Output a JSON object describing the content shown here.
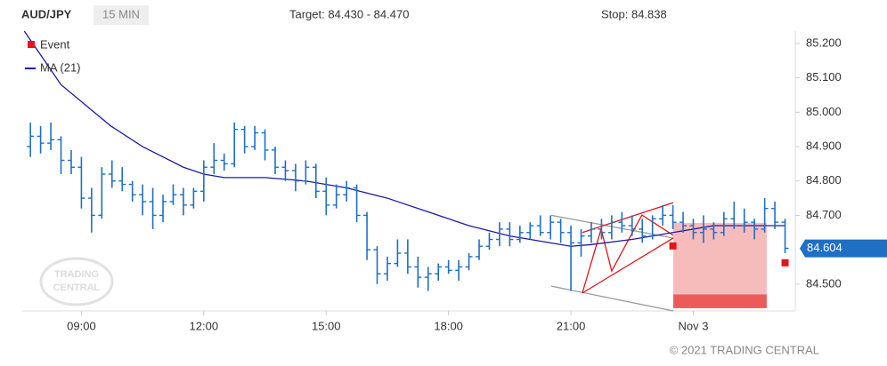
{
  "header": {
    "symbol": "AUD/JPY",
    "interval": "15 MIN",
    "target": "Target: 84.430 - 84.470",
    "stop": "Stop: 84.838"
  },
  "chart_data": {
    "type": "ohlc",
    "color": "#1f6fc5",
    "x": [
      7.75,
      8,
      8.25,
      8.5,
      8.75,
      9,
      9.25,
      9.5,
      9.75,
      10,
      10.25,
      10.5,
      10.75,
      11,
      11.25,
      11.5,
      11.75,
      12,
      12.25,
      12.5,
      12.75,
      13,
      13.25,
      13.5,
      13.75,
      14,
      14.25,
      14.5,
      14.75,
      15,
      15.25,
      15.5,
      15.75,
      16,
      16.25,
      16.5,
      16.75,
      17,
      17.25,
      17.5,
      17.75,
      18,
      18.25,
      18.5,
      18.75,
      19,
      19.25,
      19.5,
      19.75,
      20,
      20.25,
      20.5,
      20.75,
      21,
      21.25,
      21.5,
      21.75,
      22,
      22.25,
      22.5,
      22.75,
      23,
      23.25,
      23.5,
      23.75,
      24,
      24.25,
      24.5,
      24.75,
      25,
      25.25,
      25.5,
      25.75,
      26,
      26.25
    ],
    "open": [
      84.9,
      84.93,
      84.91,
      84.92,
      84.86,
      84.84,
      84.75,
      84.7,
      84.82,
      84.8,
      84.79,
      84.76,
      84.74,
      84.7,
      84.74,
      84.76,
      84.73,
      84.77,
      84.84,
      84.86,
      84.85,
      84.95,
      84.9,
      84.94,
      84.89,
      84.84,
      84.83,
      84.8,
      84.84,
      84.77,
      84.73,
      84.76,
      84.78,
      84.7,
      84.6,
      84.53,
      84.56,
      84.59,
      84.55,
      84.52,
      84.53,
      84.55,
      84.54,
      84.55,
      84.58,
      84.61,
      84.63,
      84.66,
      84.63,
      84.65,
      84.67,
      84.65,
      84.68,
      84.65,
      84.62,
      84.64,
      84.66,
      84.65,
      84.68,
      84.67,
      84.66,
      84.64,
      84.69,
      84.7,
      84.68,
      84.67,
      84.65,
      84.66,
      84.65,
      84.69,
      84.67,
      84.68,
      84.66,
      84.72,
      84.68
    ],
    "high": [
      84.97,
      84.96,
      84.97,
      84.93,
      84.89,
      84.87,
      84.78,
      84.84,
      84.86,
      84.84,
      84.8,
      84.79,
      84.78,
      84.76,
      84.79,
      84.78,
      84.78,
      84.86,
      84.91,
      84.88,
      84.97,
      84.96,
      84.96,
      84.95,
      84.9,
      84.86,
      84.85,
      84.86,
      84.85,
      84.81,
      84.79,
      84.8,
      84.79,
      84.71,
      84.61,
      84.58,
      84.63,
      84.63,
      84.58,
      84.55,
      84.56,
      84.57,
      84.57,
      84.59,
      84.63,
      84.65,
      84.68,
      84.68,
      84.67,
      84.68,
      84.7,
      84.7,
      84.69,
      84.67,
      84.66,
      84.68,
      84.69,
      84.7,
      84.71,
      84.7,
      84.69,
      84.7,
      84.73,
      84.73,
      84.71,
      84.69,
      84.7,
      84.68,
      84.71,
      84.74,
      84.72,
      84.69,
      84.75,
      84.74,
      84.69
    ],
    "low": [
      84.87,
      84.88,
      84.89,
      84.82,
      84.82,
      84.72,
      84.65,
      84.69,
      84.78,
      84.77,
      84.74,
      84.7,
      84.66,
      84.68,
      84.73,
      84.7,
      84.72,
      84.74,
      84.82,
      84.83,
      84.84,
      84.88,
      84.89,
      84.86,
      84.82,
      84.8,
      84.77,
      84.79,
      84.75,
      84.7,
      84.72,
      84.74,
      84.68,
      84.57,
      84.5,
      84.51,
      84.55,
      84.53,
      84.49,
      84.48,
      84.51,
      84.53,
      84.51,
      84.54,
      84.57,
      84.6,
      84.61,
      84.61,
      84.62,
      84.63,
      84.64,
      84.63,
      84.62,
      84.48,
      84.58,
      84.62,
      84.63,
      84.63,
      84.65,
      84.64,
      84.62,
      84.63,
      84.67,
      84.66,
      84.65,
      84.63,
      84.62,
      84.63,
      84.64,
      84.66,
      84.65,
      84.63,
      84.65,
      84.66,
      84.59
    ],
    "close": [
      84.93,
      84.91,
      84.92,
      84.86,
      84.84,
      84.75,
      84.7,
      84.82,
      84.8,
      84.79,
      84.76,
      84.74,
      84.7,
      84.74,
      84.76,
      84.73,
      84.77,
      84.84,
      84.86,
      84.85,
      84.95,
      84.9,
      84.94,
      84.89,
      84.84,
      84.83,
      84.8,
      84.84,
      84.77,
      84.73,
      84.76,
      84.78,
      84.7,
      84.6,
      84.53,
      84.56,
      84.59,
      84.55,
      84.52,
      84.53,
      84.55,
      84.54,
      84.55,
      84.58,
      84.61,
      84.63,
      84.66,
      84.63,
      84.65,
      84.67,
      84.65,
      84.68,
      84.65,
      84.62,
      84.64,
      84.66,
      84.65,
      84.68,
      84.67,
      84.66,
      84.64,
      84.69,
      84.7,
      84.68,
      84.67,
      84.65,
      84.66,
      84.65,
      84.69,
      84.67,
      84.68,
      84.66,
      84.72,
      84.68,
      84.604
    ],
    "ma": {
      "name": "MA (21)",
      "color": "#1a1aa8",
      "x": [
        7.6,
        8.5,
        9.72,
        10.5,
        11.5,
        12.0,
        12.5,
        13.5,
        14.5,
        15.0,
        15.5,
        16.5,
        17.5,
        18.0,
        18.5,
        19.5,
        20.5,
        21.0,
        21.5,
        22.5,
        23.5,
        24.5,
        25.5,
        26.25
      ],
      "values": [
        85.236,
        85.08,
        84.96,
        84.9,
        84.84,
        84.82,
        84.81,
        84.81,
        84.8,
        84.79,
        84.78,
        84.75,
        84.71,
        84.69,
        84.67,
        84.64,
        84.62,
        84.61,
        84.615,
        84.63,
        84.65,
        84.67,
        84.67,
        84.67
      ]
    },
    "events": {
      "name": "Event",
      "color": "#e0161b",
      "x": [
        23.5,
        26.25
      ],
      "values": [
        84.611,
        84.562
      ]
    },
    "pattern_lines": [
      {
        "color": "#999999",
        "x": [
          20.52,
          23.51
        ],
        "values": [
          84.7,
          84.634
        ]
      },
      {
        "color": "#999999",
        "x": [
          20.52,
          23.51
        ],
        "values": [
          84.494,
          84.422
        ]
      },
      {
        "color": "#e0161b",
        "x": [
          21.28,
          23.51
        ],
        "values": [
          84.65,
          84.737
        ]
      },
      {
        "color": "#e0161b",
        "x": [
          21.28,
          23.51
        ],
        "values": [
          84.474,
          84.634
        ]
      },
      {
        "color": "#e0161b",
        "x": [
          21.28,
          21.74,
          22.0,
          22.74,
          23.51
        ],
        "values": [
          84.474,
          84.66,
          84.538,
          84.701,
          84.642
        ]
      }
    ],
    "zone": {
      "x": [
        23.51,
        25.8
      ],
      "top": 84.678,
      "bottom": 84.43,
      "target_top": 84.47,
      "color": "#f6bcbc",
      "target_color": "#ee5a5a"
    },
    "last_price": {
      "value": 84.604,
      "color": "#1f6fc5"
    },
    "xlim": [
      7.55,
      26.5
    ],
    "ylim": [
      84.422,
      85.236
    ],
    "xticks": [
      {
        "value": 9,
        "label": "09:00"
      },
      {
        "value": 12,
        "label": "12:00"
      },
      {
        "value": 15,
        "label": "15:00"
      },
      {
        "value": 18,
        "label": "18:00"
      },
      {
        "value": 21,
        "label": "21:00"
      },
      {
        "value": 24,
        "label": "Nov 3"
      }
    ],
    "yticks": [
      {
        "value": 84.5,
        "label": "84.500"
      },
      {
        "value": 84.7,
        "label": "84.700"
      },
      {
        "value": 84.8,
        "label": "84.800"
      },
      {
        "value": 84.9,
        "label": "84.900"
      },
      {
        "value": 85.0,
        "label": "85.000"
      },
      {
        "value": 85.1,
        "label": "85.100"
      },
      {
        "value": 85.2,
        "label": "85.200"
      }
    ]
  },
  "watermark": {
    "line1": "TRADING",
    "line2": "CENTRAL"
  },
  "footer": "© 2021 TRADING CENTRAL"
}
